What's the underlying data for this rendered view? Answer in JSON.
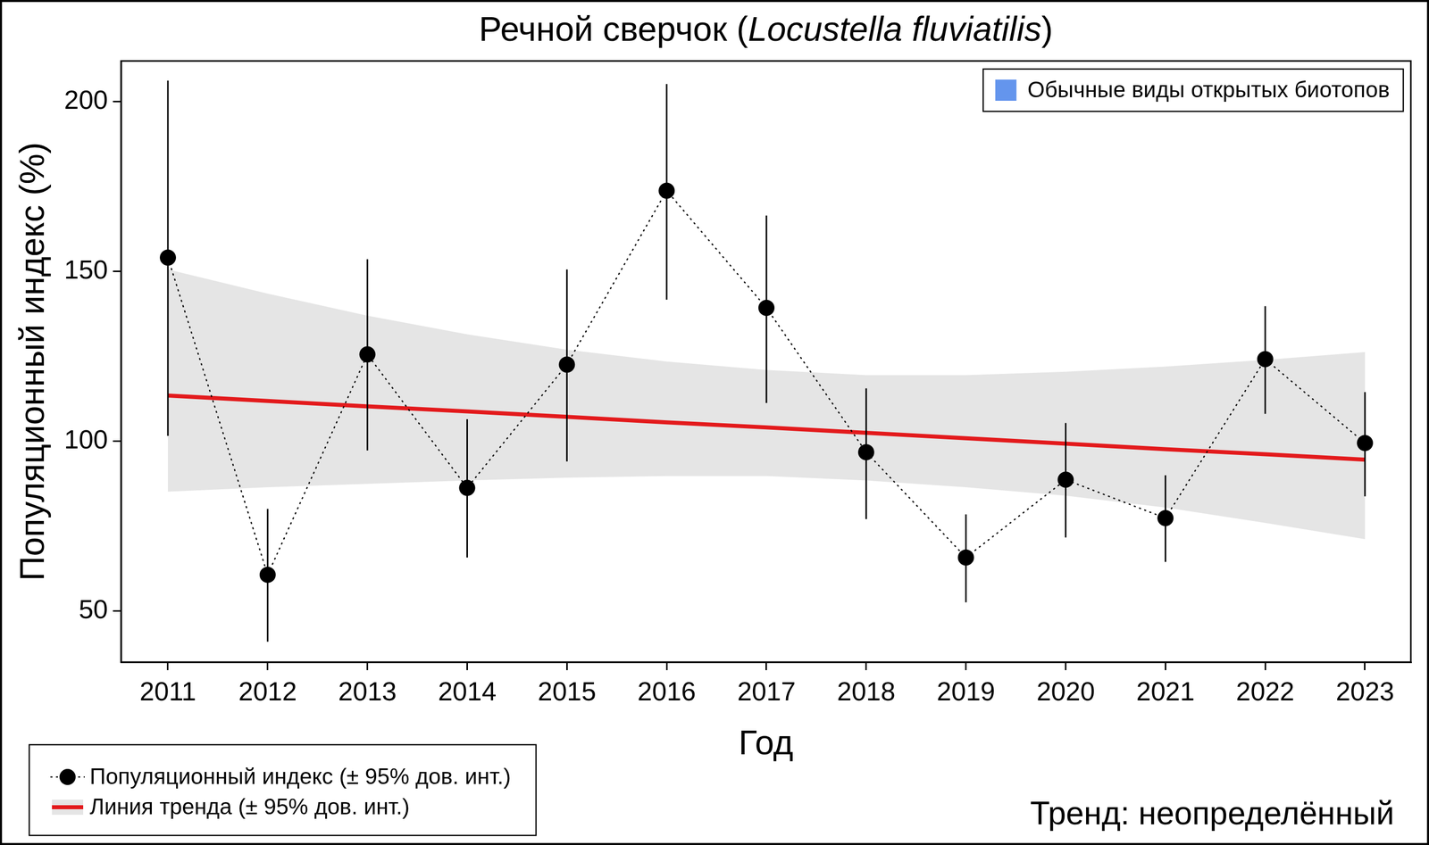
{
  "chart_data": {
    "type": "line",
    "title": "Речной сверчок (Locustella fluviatilis)",
    "title_italic": "Locustella fluviatilis",
    "x_label": "Год",
    "y_label": "Популяционный индекс (%)",
    "annotation": "Тренд: неопределённый",
    "group_label": "Обычные виды открытых биотопов",
    "group_color": "#6495ed",
    "x": [
      2011,
      2012,
      2013,
      2014,
      2015,
      2016,
      2017,
      2018,
      2019,
      2020,
      2021,
      2022,
      2023
    ],
    "series": [
      {
        "name": "Популяционный индекс (± 95% дов. инт.)",
        "color": "#000000",
        "marker": "circle",
        "line_style": "dotted",
        "values": [
          154.1,
          60.7,
          125.6,
          86.3,
          122.6,
          173.8,
          139.3,
          96.8,
          65.8,
          88.7,
          77.4,
          124.2,
          99.5
        ],
        "ci_lower": [
          101.6,
          41.0,
          97.3,
          65.8,
          94.1,
          141.7,
          111.3,
          77.1,
          52.6,
          71.7,
          64.5,
          108.1,
          83.8
        ],
        "ci_upper": [
          206.2,
          80.1,
          153.6,
          106.5,
          150.6,
          205.2,
          166.5,
          115.6,
          78.5,
          105.4,
          90.0,
          139.8,
          114.5
        ]
      },
      {
        "name": "Линия тренда (± 95% дов. инт.)",
        "color": "#e31a1c",
        "marker": "none",
        "line_style": "solid",
        "values": [
          113.5,
          111.9,
          110.3,
          108.8,
          107.2,
          105.6,
          104.1,
          102.5,
          100.9,
          99.3,
          97.7,
          96.2,
          94.6
        ],
        "ci_lower": [
          85.2,
          86.5,
          87.5,
          88.5,
          89.3,
          89.8,
          89.8,
          88.5,
          86.5,
          84.0,
          80.5,
          76.0,
          71.2
        ],
        "ci_upper": [
          150.6,
          143.5,
          137.0,
          131.5,
          127.0,
          123.5,
          121.0,
          119.5,
          119.5,
          120.5,
          122.0,
          124.0,
          126.3
        ]
      }
    ],
    "xlim": [
      2010.53,
      2023.46
    ],
    "xticks": [
      2011,
      2012,
      2013,
      2014,
      2015,
      2016,
      2017,
      2018,
      2019,
      2020,
      2021,
      2022,
      2023
    ],
    "ylim": [
      35,
      212
    ],
    "yticks": [
      50,
      100,
      150,
      200
    ],
    "grid": false,
    "legend": "bottom-left"
  }
}
